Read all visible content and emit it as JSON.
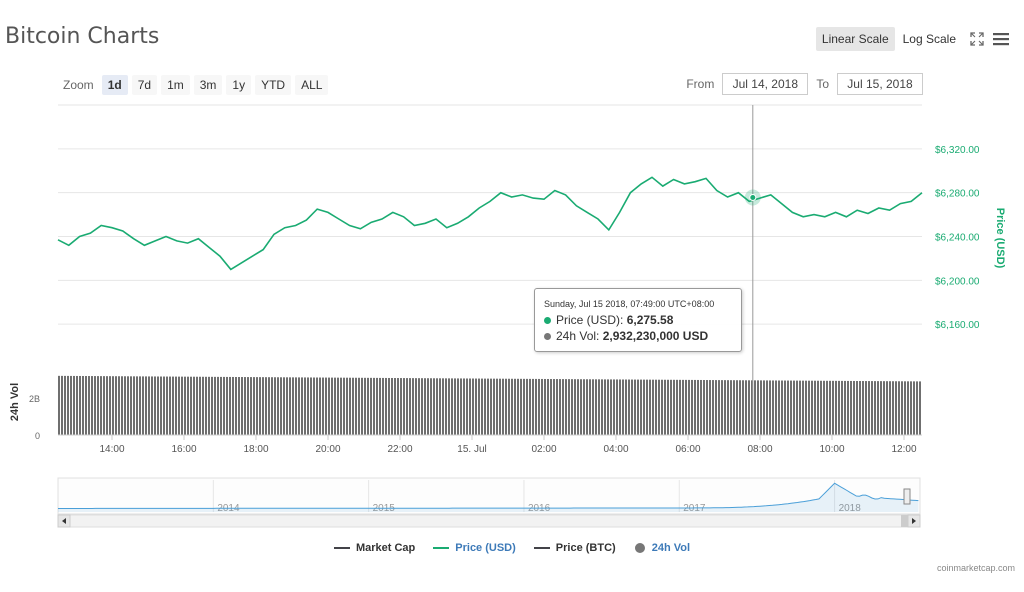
{
  "page": {
    "title": "Bitcoin Charts",
    "credit": "coinmarketcap.com"
  },
  "scale": {
    "linear_label": "Linear Scale",
    "log_label": "Log Scale",
    "active": "linear"
  },
  "zoom": {
    "label": "Zoom",
    "buttons": [
      "1d",
      "7d",
      "1m",
      "3m",
      "1y",
      "YTD",
      "ALL"
    ],
    "active": "1d"
  },
  "range": {
    "from_label": "From",
    "from_value": "Jul 14, 2018",
    "to_label": "To",
    "to_value": "Jul 15, 2018"
  },
  "tooltip": {
    "header": "Sunday, Jul 15 2018, 07:49:00 UTC+08:00",
    "price_label": "Price (USD):",
    "price_value": "6,275.58",
    "vol_label": "24h Vol:",
    "vol_value": "2,932,230,000 USD"
  },
  "legend": [
    {
      "label": "Market Cap",
      "color": "#434348",
      "kind": "line"
    },
    {
      "label": "Price (USD)",
      "color": "#1aab72",
      "kind": "line"
    },
    {
      "label": "Price (BTC)",
      "color": "#434348",
      "kind": "line"
    },
    {
      "label": "24h Vol",
      "color": "#777777",
      "kind": "dot"
    }
  ],
  "colors": {
    "price": "#1aab72",
    "price_axis": "#1aab72",
    "volume": "#6f6f6f",
    "navigator": "#4a9fd8",
    "grid": "#e6e6e6"
  },
  "icons": [
    "fullscreen-icon",
    "menu-icon",
    "scroll-left-icon",
    "scroll-right-icon"
  ],
  "chart_data": {
    "type": "line",
    "x_unit": "time (UTC+08:00)",
    "x_start": "Jul 14 12:30",
    "x_end": "Jul 15 12:30",
    "x_ticks": [
      "14:00",
      "16:00",
      "18:00",
      "20:00",
      "22:00",
      "15. Jul",
      "02:00",
      "04:00",
      "06:00",
      "08:00",
      "10:00",
      "12:00"
    ],
    "price": {
      "ylabel": "Price (USD)",
      "y_ticks": [
        "$6,160.00",
        "$6,200.00",
        "$6,240.00",
        "$6,280.00",
        "$6,320.00"
      ],
      "ylim": [
        6120,
        6360
      ],
      "hours": [
        0,
        0.3,
        0.6,
        0.9,
        1.2,
        1.5,
        1.8,
        2.1,
        2.4,
        2.7,
        3.0,
        3.3,
        3.6,
        3.9,
        4.2,
        4.5,
        4.8,
        5.1,
        5.4,
        5.7,
        6.0,
        6.3,
        6.6,
        6.9,
        7.2,
        7.5,
        7.8,
        8.1,
        8.4,
        8.7,
        9.0,
        9.3,
        9.6,
        9.9,
        10.2,
        10.5,
        10.8,
        11.1,
        11.4,
        11.7,
        12.0,
        12.3,
        12.6,
        12.9,
        13.2,
        13.5,
        13.8,
        14.1,
        14.4,
        14.7,
        15.0,
        15.3,
        15.6,
        15.9,
        16.2,
        16.5,
        16.8,
        17.1,
        17.4,
        17.7,
        18.0,
        18.3,
        18.6,
        18.9,
        19.2,
        19.5,
        19.8,
        20.1,
        20.4,
        20.7,
        21.0,
        21.3,
        21.6,
        21.9,
        22.2,
        22.5,
        22.8,
        23.1,
        23.4,
        23.7,
        24.0
      ],
      "values": [
        6237,
        6232,
        6240,
        6243,
        6250,
        6248,
        6245,
        6238,
        6232,
        6236,
        6240,
        6236,
        6234,
        6238,
        6230,
        6222,
        6210,
        6216,
        6222,
        6228,
        6242,
        6248,
        6250,
        6255,
        6265,
        6262,
        6256,
        6250,
        6247,
        6253,
        6256,
        6262,
        6258,
        6250,
        6252,
        6256,
        6248,
        6252,
        6258,
        6266,
        6272,
        6280,
        6276,
        6278,
        6275,
        6274,
        6282,
        6278,
        6268,
        6262,
        6256,
        6246,
        6262,
        6280,
        6288,
        6294,
        6286,
        6292,
        6288,
        6290,
        6293,
        6282,
        6276,
        6280,
        6272,
        6275,
        6278,
        6270,
        6262,
        6258,
        6260,
        6258,
        6262,
        6258,
        6264,
        6261,
        6266,
        6264,
        6270,
        6272,
        6280
      ]
    },
    "volume": {
      "ylabel": "24h Vol",
      "y_ticks": [
        "0",
        "2B"
      ],
      "ylim": [
        0,
        3300000000.0
      ],
      "start_value": 3200000000.0,
      "end_value": 2900000000.0
    },
    "navigator": {
      "x_ticks": [
        "2014",
        "2015",
        "2016",
        "2017",
        "2018"
      ]
    },
    "crosshair_hour": 19.3
  }
}
